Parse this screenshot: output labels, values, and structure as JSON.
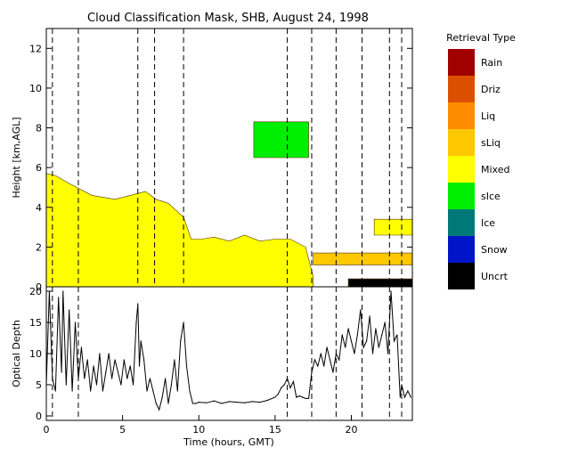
{
  "chart_data": [
    {
      "type": "heatmap",
      "title": "Cloud Classification Mask, SHB, August 24, 1998",
      "ylabel": "Height [km,AGL]",
      "xlim": [
        0,
        24
      ],
      "ylim": [
        0,
        13
      ],
      "yticks": [
        0,
        2,
        4,
        6,
        8,
        10,
        12
      ],
      "legend": {
        "title": "Retrieval Type",
        "placement": "right",
        "items": [
          {
            "label": "Rain",
            "color": "#a00000"
          },
          {
            "label": "Driz",
            "color": "#dd4f00"
          },
          {
            "label": "Liq",
            "color": "#ff8c00"
          },
          {
            "label": "sLiq",
            "color": "#ffc800"
          },
          {
            "label": "Mixed",
            "color": "#ffff00"
          },
          {
            "label": "sIce",
            "color": "#00ee00"
          },
          {
            "label": "Ice",
            "color": "#007878"
          },
          {
            "label": "Snow",
            "color": "#0014c8"
          },
          {
            "label": "Uncrt",
            "color": "#000000"
          }
        ]
      },
      "regions": [
        {
          "class": "Mixed",
          "description": "low mixed-phase cloud layer",
          "x": [
            0,
            0.6,
            1.5,
            3,
            4.5,
            5.5,
            6.5,
            7.2,
            8,
            9,
            9.5,
            10.2,
            11,
            12,
            13,
            14,
            15,
            16,
            17,
            17.5
          ],
          "top": [
            5.7,
            5.6,
            5.2,
            4.6,
            4.4,
            4.6,
            4.8,
            4.4,
            4.2,
            3.5,
            2.4,
            2.4,
            2.5,
            2.3,
            2.6,
            2.3,
            2.4,
            2.4,
            2.0,
            0.5
          ],
          "base": 0
        },
        {
          "class": "sIce",
          "description": "elevated ice cloud",
          "x": [
            13.6,
            17.2
          ],
          "top": 8.3,
          "base": 6.5
        },
        {
          "class": "sLiq",
          "description": "supercooled liquid band",
          "x": [
            17.5,
            24
          ],
          "top": 1.7,
          "base": 1.1
        },
        {
          "class": "Mixed",
          "description": "late mixed layer",
          "x": [
            21.5,
            24
          ],
          "top": 3.4,
          "base": 2.6
        },
        {
          "class": "Uncrt",
          "description": "near-surface uncertain returns",
          "x": [
            19.8,
            24
          ],
          "top": 0.4,
          "base": 0
        }
      ],
      "vertical_dashed_lines": [
        0.4,
        2.1,
        6.0,
        7.1,
        9.0,
        15.8,
        17.4,
        19.0,
        20.7,
        22.5,
        23.3
      ]
    },
    {
      "type": "line",
      "xlabel": "Time (hours, GMT)",
      "ylabel": "Optical Depth",
      "xlim": [
        0,
        24
      ],
      "ylim": [
        0,
        20
      ],
      "xticks": [
        0,
        5,
        10,
        15,
        20
      ],
      "yticks": [
        0,
        5,
        10,
        15,
        20
      ],
      "series": [
        {
          "x": [
            0.0,
            0.2,
            0.4,
            0.6,
            0.8,
            1.0,
            1.1,
            1.3,
            1.5,
            1.7,
            1.9,
            2.1,
            2.3,
            2.5,
            2.7,
            2.9,
            3.1,
            3.3,
            3.5,
            3.7,
            3.9,
            4.1,
            4.3,
            4.5,
            4.7,
            4.9,
            5.1,
            5.3,
            5.5,
            5.7,
            5.9,
            6.0,
            6.1,
            6.2,
            6.4,
            6.6,
            6.8,
            7.0,
            7.2,
            7.4,
            7.6,
            7.8,
            8.0,
            8.2,
            8.4,
            8.6,
            8.8,
            9.0,
            9.2,
            9.4,
            9.6,
            9.8,
            10.0,
            10.5,
            11.0,
            11.5,
            12.0,
            12.5,
            13.0,
            13.5,
            14.0,
            14.5,
            15.0,
            15.2,
            15.4,
            15.6,
            15.8,
            16.0,
            16.2,
            16.4,
            16.6,
            16.8,
            17.0,
            17.2,
            17.4,
            17.6,
            17.8,
            18.0,
            18.2,
            18.4,
            18.6,
            18.8,
            19.0,
            19.2,
            19.4,
            19.6,
            19.8,
            20.0,
            20.2,
            20.4,
            20.6,
            20.8,
            21.0,
            21.2,
            21.4,
            21.6,
            21.8,
            22.0,
            22.2,
            22.4,
            22.6,
            22.8,
            23.0,
            23.2,
            23.3,
            23.5,
            23.7,
            23.9
          ],
          "values": [
            5,
            20,
            6,
            4,
            19,
            7,
            20,
            5,
            17,
            4,
            15,
            6,
            11,
            6,
            9,
            4,
            8,
            5,
            10,
            4,
            7,
            10,
            6,
            9,
            7,
            5,
            9,
            6,
            8,
            5,
            15,
            18,
            8,
            12,
            9,
            4,
            6,
            4,
            2,
            1,
            3,
            6,
            2,
            5,
            9,
            4,
            12,
            15,
            8,
            4,
            2,
            2,
            2.2,
            2.1,
            2.4,
            2.0,
            2.3,
            2.2,
            2.1,
            2.3,
            2.2,
            2.5,
            3.0,
            3.5,
            4.5,
            5.0,
            6.0,
            4.5,
            5.5,
            3.0,
            3.2,
            3.0,
            2.8,
            2.8,
            7,
            9,
            8,
            10,
            8,
            11,
            9,
            7,
            10,
            9,
            13,
            11,
            14,
            12,
            10,
            13,
            17,
            11,
            12,
            16,
            10,
            14,
            11,
            13,
            15,
            10,
            20,
            12,
            13,
            3,
            5,
            3,
            4,
            3
          ]
        }
      ],
      "vertical_dashed_lines": [
        0.4,
        2.1,
        15.8,
        17.4,
        19.0,
        20.7,
        22.5,
        23.3
      ]
    }
  ]
}
